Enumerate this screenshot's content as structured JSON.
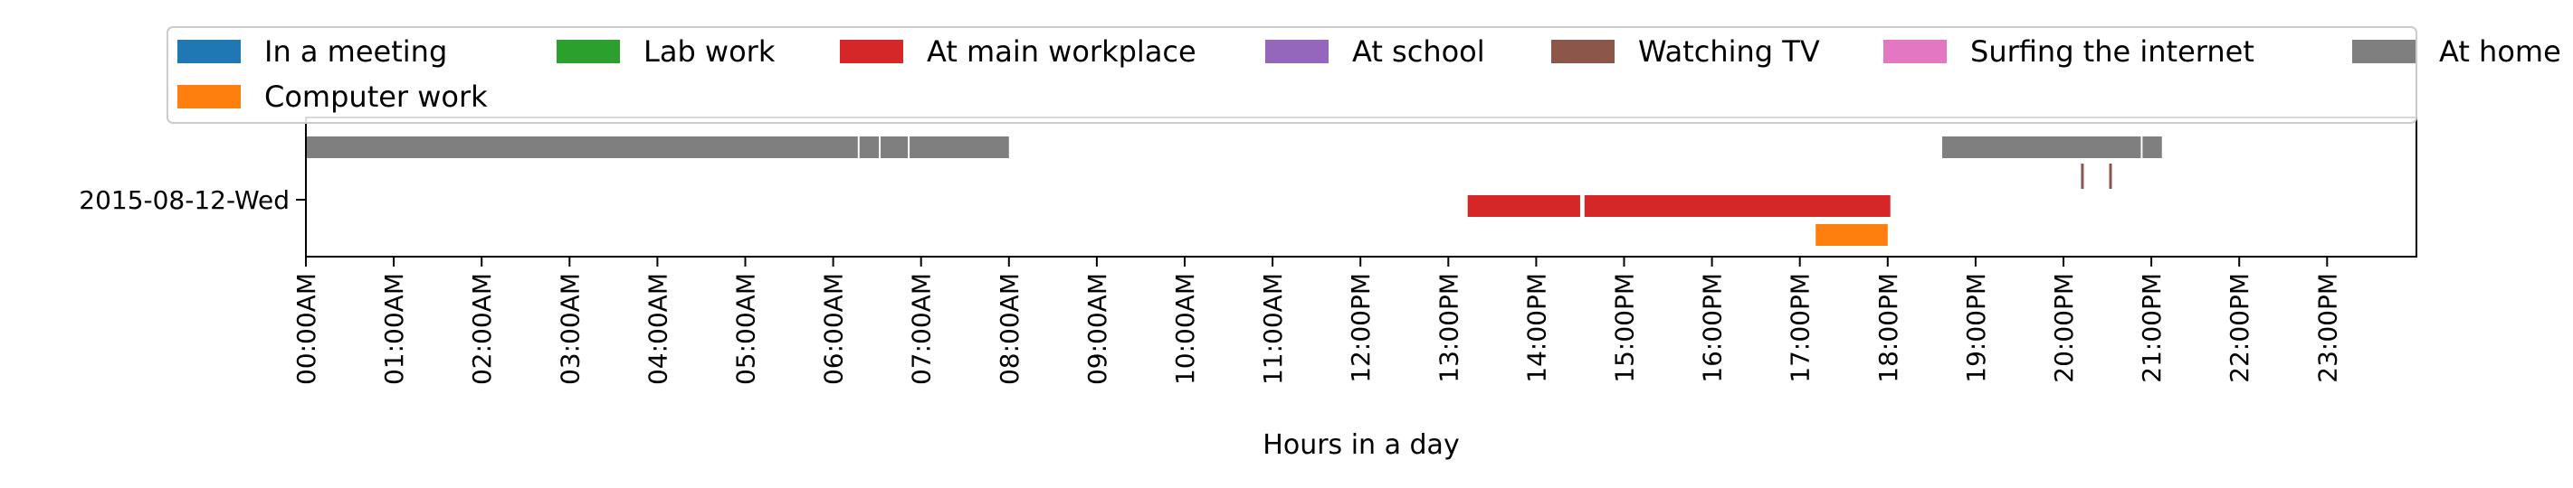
{
  "chart_data": {
    "type": "timeline",
    "xlabel": "Hours in a day",
    "ylabel": "",
    "xlim": [
      0,
      24
    ],
    "x_ticks": [
      "00:00AM",
      "01:00AM",
      "02:00AM",
      "03:00AM",
      "04:00AM",
      "05:00AM",
      "06:00AM",
      "07:00AM",
      "08:00AM",
      "09:00AM",
      "10:00AM",
      "11:00AM",
      "12:00PM",
      "13:00PM",
      "14:00PM",
      "15:00PM",
      "16:00PM",
      "17:00PM",
      "18:00PM",
      "19:00PM",
      "20:00PM",
      "21:00PM",
      "22:00PM",
      "23:00PM"
    ],
    "y_categories": [
      "2015-08-12-Wed"
    ],
    "legend_position": "top",
    "legend": [
      {
        "name": "In a meeting",
        "color": "#1f77b4"
      },
      {
        "name": "Lab work",
        "color": "#2ca02c"
      },
      {
        "name": "At main workplace",
        "color": "#d62728"
      },
      {
        "name": "At school",
        "color": "#9467bd"
      },
      {
        "name": "Watching TV",
        "color": "#8c564b"
      },
      {
        "name": "Surfing the internet",
        "color": "#e377c2"
      },
      {
        "name": "At home",
        "color": "#7f7f7f"
      },
      {
        "name": "Computer work",
        "color": "#ff7f0e"
      }
    ],
    "series": [
      {
        "name": "At home",
        "color": "#7f7f7f",
        "lane": "top",
        "intervals": [
          [
            0.0,
            6.28
          ],
          [
            6.3,
            6.52
          ],
          [
            6.54,
            6.85
          ],
          [
            6.87,
            8.0
          ],
          [
            18.62,
            20.88
          ],
          [
            20.9,
            21.12
          ]
        ]
      },
      {
        "name": "Watching TV",
        "color": "#8c564b",
        "lane": "marks",
        "intervals": [
          [
            20.2,
            20.24
          ],
          [
            20.52,
            20.56
          ]
        ]
      },
      {
        "name": "At main workplace",
        "color": "#d62728",
        "lane": "middle",
        "intervals": [
          [
            13.22,
            14.5
          ],
          [
            14.55,
            18.03
          ]
        ]
      },
      {
        "name": "Computer work",
        "color": "#ff7f0e",
        "lane": "bottom",
        "intervals": [
          [
            17.18,
            18.0
          ]
        ]
      }
    ]
  }
}
